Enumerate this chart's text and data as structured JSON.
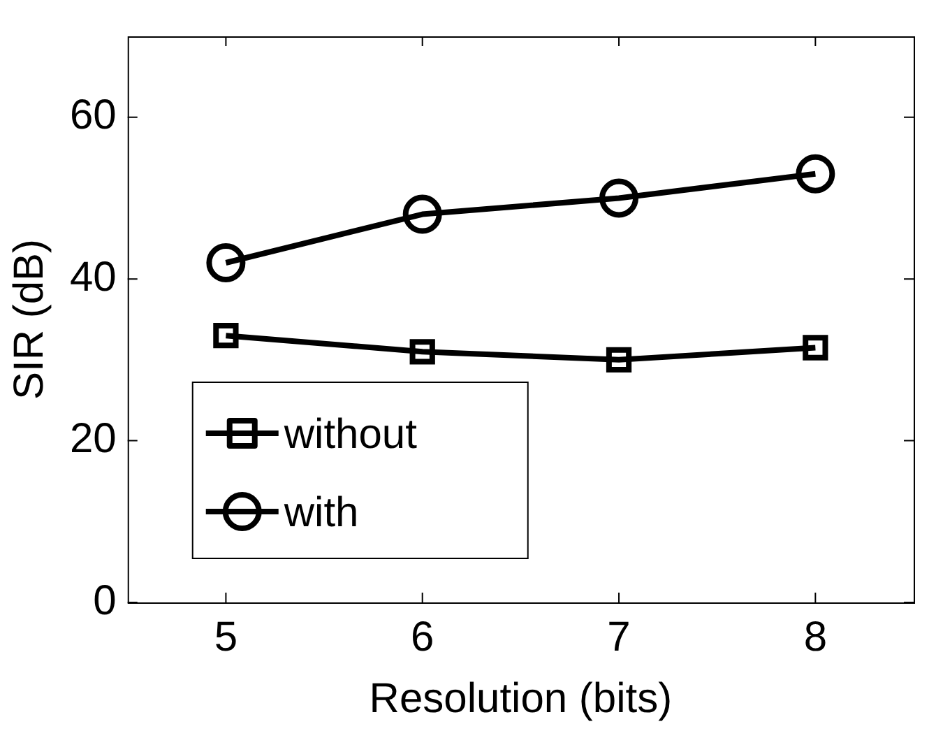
{
  "chart_data": {
    "type": "line",
    "xlabel": "Resolution (bits)",
    "ylabel": "SIR (dB)",
    "x": [
      5,
      6,
      7,
      8
    ],
    "series": [
      {
        "name": "without",
        "color": "#000000",
        "marker": "square",
        "values": [
          33,
          31,
          30,
          31.5
        ]
      },
      {
        "name": "with",
        "color": "#000000",
        "marker": "circle",
        "values": [
          42,
          48,
          50,
          53
        ]
      }
    ],
    "xlim": [
      4.5,
      8.5
    ],
    "xticks": [
      5,
      6,
      7,
      8
    ],
    "ylim": [
      0,
      70
    ],
    "yticks": [
      0,
      20,
      40,
      60
    ],
    "grid": false,
    "legend": "bottom left",
    "line_style": "solid"
  }
}
